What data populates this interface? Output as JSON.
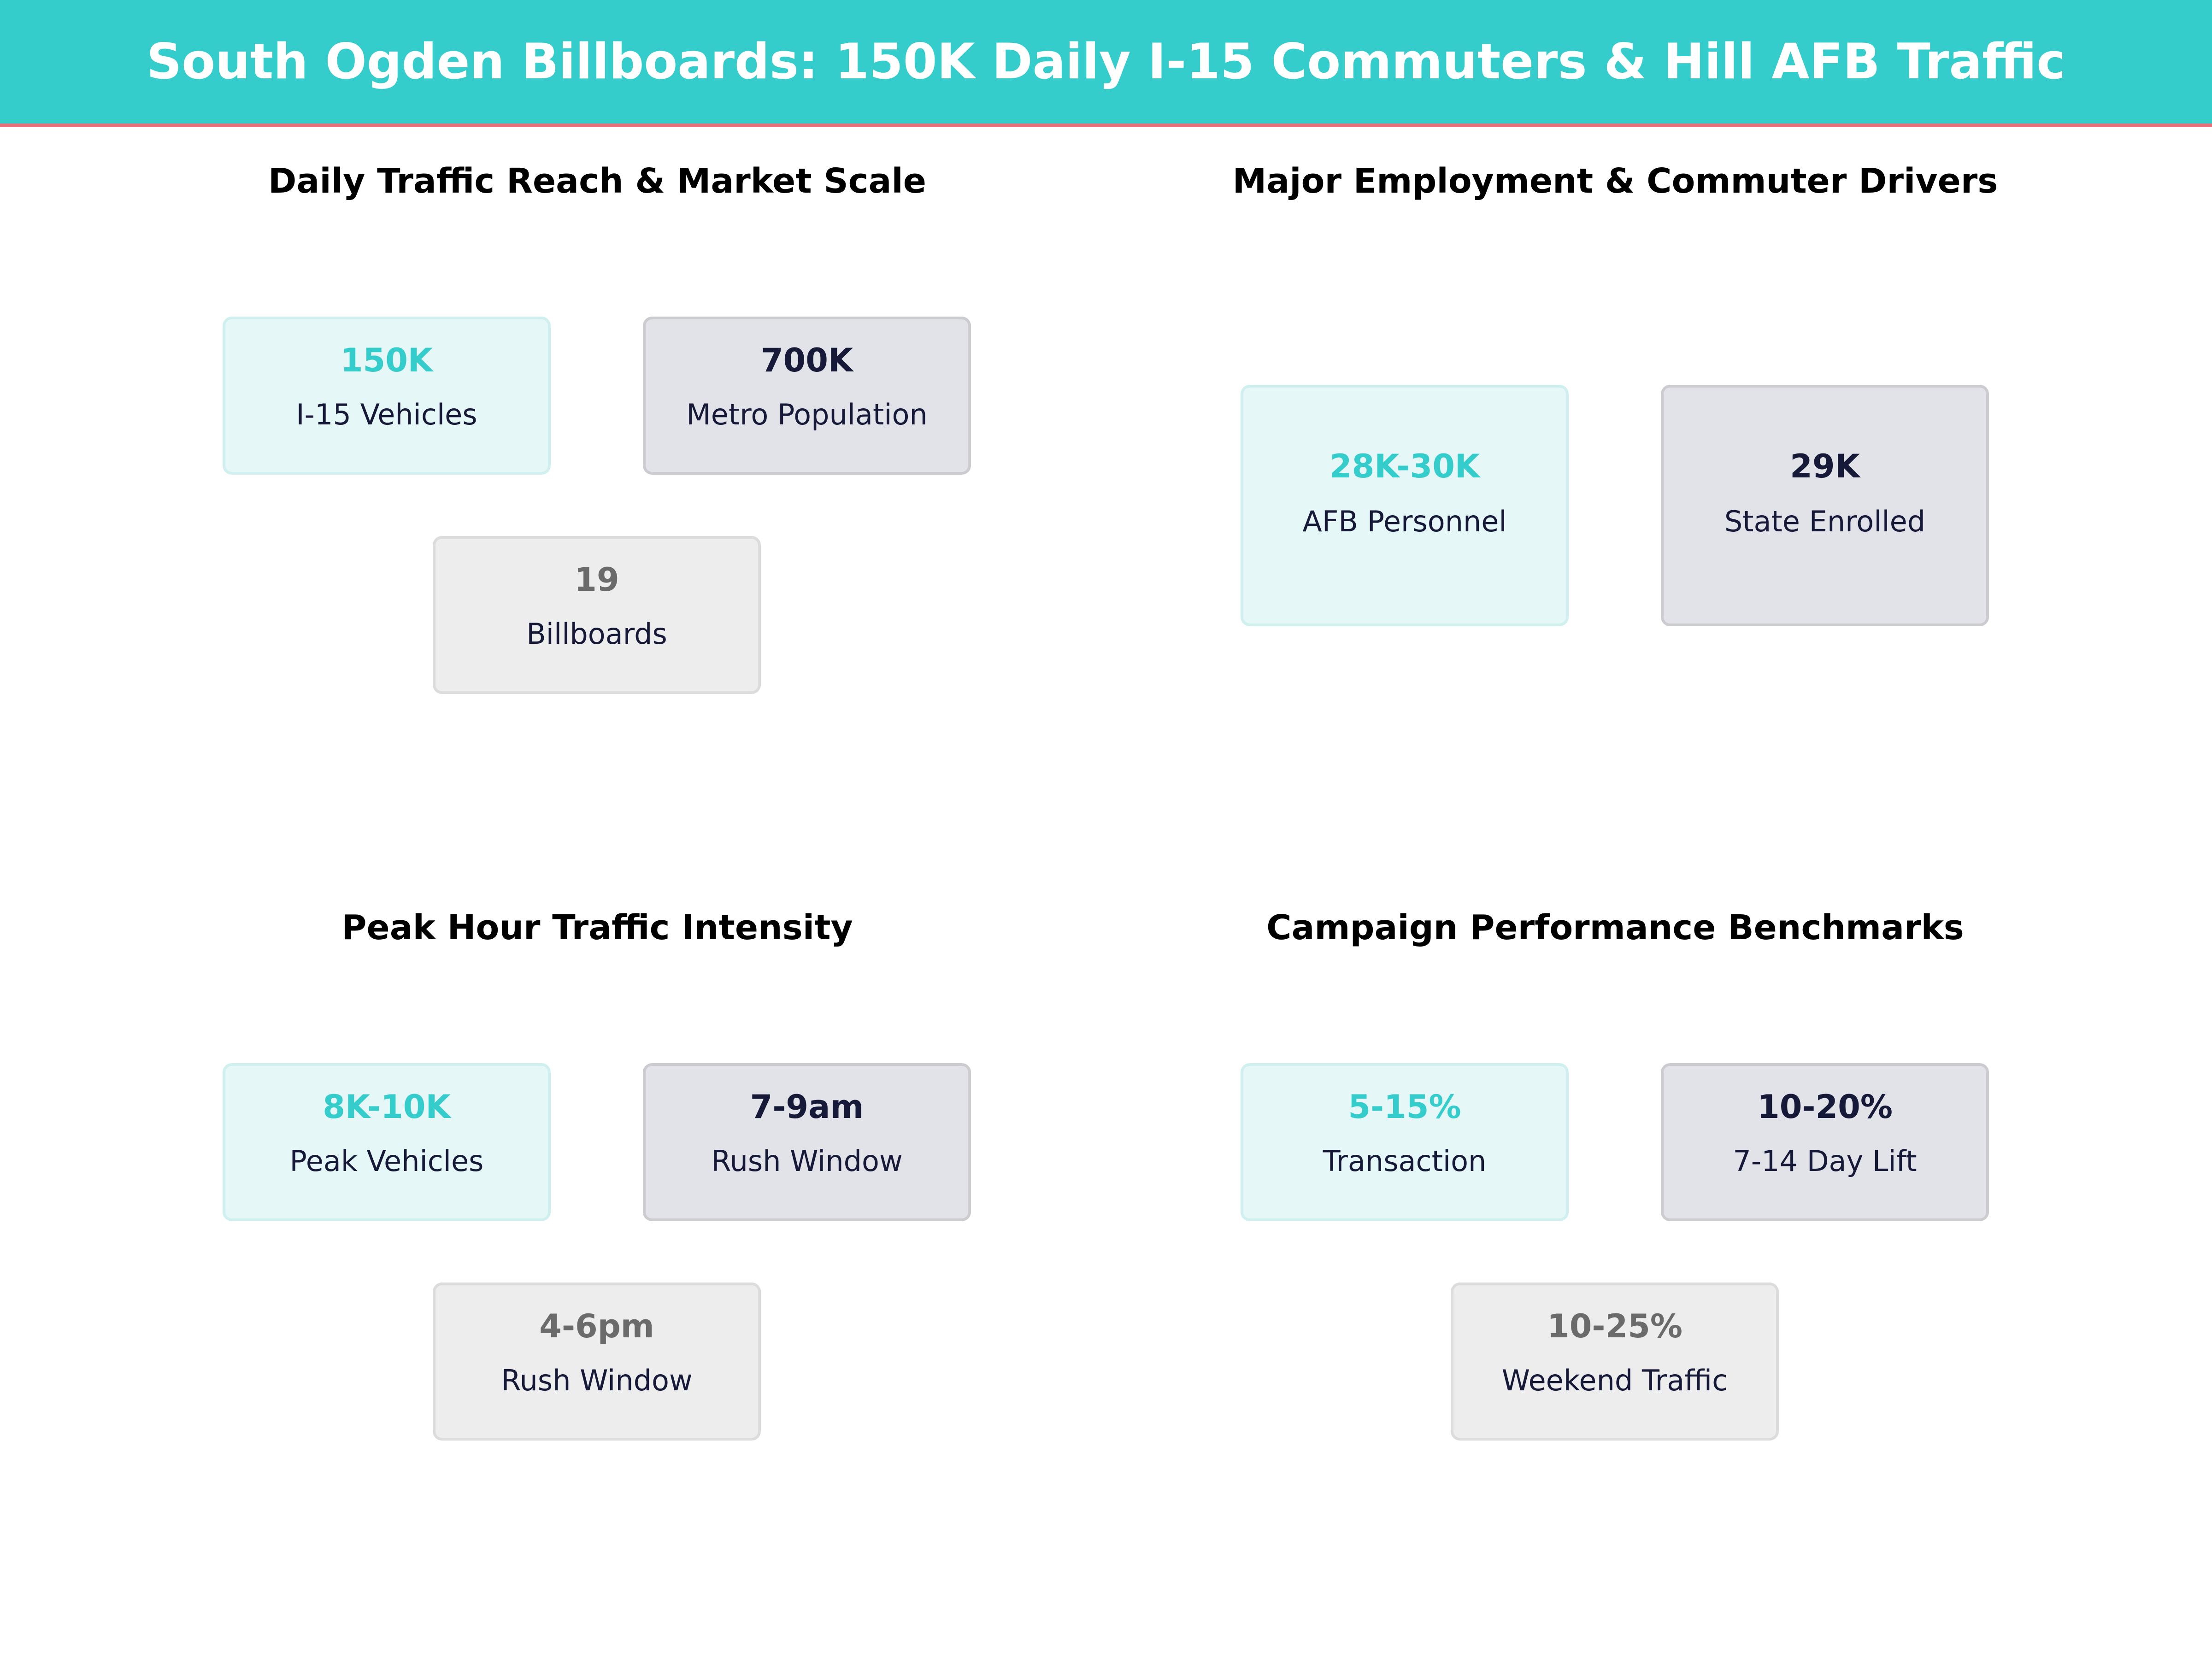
{
  "header": {
    "title": "South Ogden Billboards: 150K Daily I-15 Commuters & Hill AFB Traffic"
  },
  "panels": [
    {
      "title": "Daily Traffic Reach & Market Scale",
      "cards": [
        {
          "value": "150K",
          "label": "I-15 Vehicles"
        },
        {
          "value": "700K",
          "label": "Metro Population"
        },
        {
          "value": "19",
          "label": "Billboards"
        }
      ]
    },
    {
      "title": "Major Employment & Commuter Drivers",
      "cards": [
        {
          "value": "28K-30K",
          "label": "AFB Personnel"
        },
        {
          "value": "29K",
          "label": "State Enrolled"
        }
      ]
    },
    {
      "title": "Peak Hour Traffic Intensity",
      "cards": [
        {
          "value": "8K-10K",
          "label": "Peak Vehicles"
        },
        {
          "value": "7-9am",
          "label": "Rush Window"
        },
        {
          "value": "4-6pm",
          "label": "Rush Window"
        }
      ]
    },
    {
      "title": "Campaign Performance Benchmarks",
      "cards": [
        {
          "value": "5-15%",
          "label": "Transaction"
        },
        {
          "value": "10-20%",
          "label": "7-14 Day Lift"
        },
        {
          "value": "10-25%",
          "label": "Weekend Traffic"
        }
      ]
    }
  ],
  "colors": {
    "banner": "#35cccc",
    "banner_underline": "#e8707a",
    "accent_teal": "#35cccc",
    "accent_navy": "#161a38",
    "accent_grey": "#6b6b6b"
  }
}
